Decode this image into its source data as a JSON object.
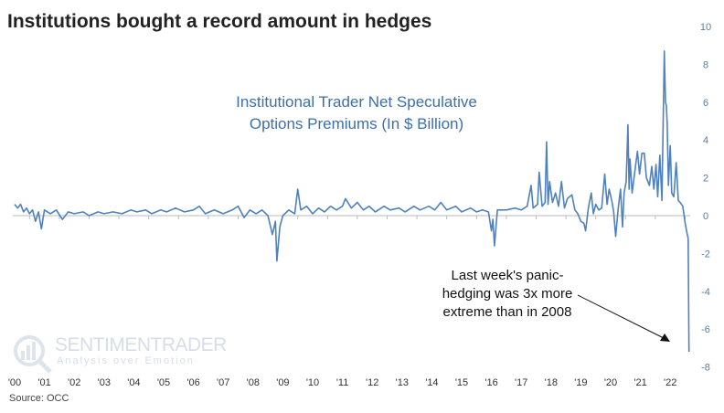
{
  "title": "Institutions bought a record amount in hedges",
  "source": "Source: OCC",
  "logo": {
    "brand": "SENTIMENTRADER",
    "tagline": "Analysis over Emotion"
  },
  "colors": {
    "series": "#4f81bd",
    "subtitle": "#3d6fa8",
    "axis": "#5a7aa6"
  },
  "chart_data": {
    "type": "line",
    "title": "Institutional Trader Net Speculative Options Premiums (In $ Billion)",
    "title_lines": [
      "Institutional Trader Net Speculative",
      "Options Premiums (In $ Billion)"
    ],
    "annotation": {
      "lines": [
        "Last week's panic-",
        "hedging was 3x more",
        "extreme than in 2008"
      ],
      "arrow": "points to latest value"
    },
    "x_tick_labels": [
      "'00",
      "'01",
      "'02",
      "'03",
      "'04",
      "'05",
      "'06",
      "'07",
      "'08",
      "'09",
      "'10",
      "'11",
      "'12",
      "'13",
      "'14",
      "'15",
      "'16",
      "'17",
      "'18",
      "'19",
      "'20",
      "'21",
      "'22"
    ],
    "y_tick_labels": [
      "10",
      "8",
      "6",
      "4",
      "2",
      "0",
      "-2",
      "-4",
      "-6",
      "-8"
    ],
    "ylim": [
      -8,
      10
    ],
    "xlim": [
      2000,
      2022.7
    ],
    "y_axis_position": "right",
    "grid": false,
    "series": [
      {
        "points": [
          [
            2000.0,
            0.6
          ],
          [
            2000.1,
            0.4
          ],
          [
            2000.2,
            0.6
          ],
          [
            2000.3,
            0.2
          ],
          [
            2000.4,
            0.4
          ],
          [
            2000.5,
            0.1
          ],
          [
            2000.6,
            0.3
          ],
          [
            2000.7,
            -0.3
          ],
          [
            2000.8,
            0.2
          ],
          [
            2000.9,
            -0.7
          ],
          [
            2001.0,
            0.3
          ],
          [
            2001.2,
            0.1
          ],
          [
            2001.4,
            0.3
          ],
          [
            2001.6,
            -0.2
          ],
          [
            2001.8,
            0.2
          ],
          [
            2002.0,
            0.1
          ],
          [
            2002.3,
            0.2
          ],
          [
            2002.5,
            0.0
          ],
          [
            2002.8,
            0.2
          ],
          [
            2003.0,
            0.1
          ],
          [
            2003.3,
            0.2
          ],
          [
            2003.6,
            0.1
          ],
          [
            2003.9,
            0.3
          ],
          [
            2004.1,
            0.2
          ],
          [
            2004.4,
            0.3
          ],
          [
            2004.6,
            0.1
          ],
          [
            2004.9,
            0.3
          ],
          [
            2005.1,
            0.2
          ],
          [
            2005.4,
            0.4
          ],
          [
            2005.7,
            0.2
          ],
          [
            2006.0,
            0.3
          ],
          [
            2006.2,
            0.5
          ],
          [
            2006.4,
            0.1
          ],
          [
            2006.7,
            0.3
          ],
          [
            2007.0,
            0.1
          ],
          [
            2007.3,
            0.3
          ],
          [
            2007.5,
            0.5
          ],
          [
            2007.7,
            -0.1
          ],
          [
            2007.9,
            0.3
          ],
          [
            2008.1,
            0.1
          ],
          [
            2008.3,
            0.3
          ],
          [
            2008.5,
            0.0
          ],
          [
            2008.65,
            -1.0
          ],
          [
            2008.75,
            -0.3
          ],
          [
            2008.8,
            -2.4
          ],
          [
            2008.9,
            -0.6
          ],
          [
            2009.0,
            0.0
          ],
          [
            2009.2,
            0.3
          ],
          [
            2009.4,
            0.1
          ],
          [
            2009.5,
            1.4
          ],
          [
            2009.6,
            0.3
          ],
          [
            2009.8,
            0.5
          ],
          [
            2010.0,
            0.1
          ],
          [
            2010.2,
            0.4
          ],
          [
            2010.4,
            0.2
          ],
          [
            2010.6,
            0.5
          ],
          [
            2010.8,
            0.3
          ],
          [
            2011.0,
            0.5
          ],
          [
            2011.1,
            0.9
          ],
          [
            2011.3,
            0.4
          ],
          [
            2011.5,
            0.7
          ],
          [
            2011.7,
            0.3
          ],
          [
            2011.9,
            0.5
          ],
          [
            2012.1,
            0.2
          ],
          [
            2012.4,
            0.5
          ],
          [
            2012.6,
            0.3
          ],
          [
            2012.9,
            0.4
          ],
          [
            2013.1,
            0.2
          ],
          [
            2013.4,
            0.5
          ],
          [
            2013.6,
            0.3
          ],
          [
            2013.9,
            0.5
          ],
          [
            2014.1,
            0.3
          ],
          [
            2014.3,
            0.7
          ],
          [
            2014.5,
            0.3
          ],
          [
            2014.8,
            0.5
          ],
          [
            2015.0,
            0.2
          ],
          [
            2015.3,
            0.4
          ],
          [
            2015.5,
            0.2
          ],
          [
            2015.7,
            0.3
          ],
          [
            2015.9,
            0.2
          ],
          [
            2016.0,
            -0.8
          ],
          [
            2016.05,
            -0.2
          ],
          [
            2016.1,
            -1.6
          ],
          [
            2016.2,
            0.3
          ],
          [
            2016.5,
            0.3
          ],
          [
            2016.8,
            0.4
          ],
          [
            2017.0,
            0.3
          ],
          [
            2017.2,
            0.5
          ],
          [
            2017.33,
            1.6
          ],
          [
            2017.4,
            0.4
          ],
          [
            2017.55,
            0.6
          ],
          [
            2017.6,
            2.3
          ],
          [
            2017.7,
            0.5
          ],
          [
            2017.8,
            0.7
          ],
          [
            2017.85,
            3.9
          ],
          [
            2017.9,
            0.6
          ],
          [
            2017.95,
            1.8
          ],
          [
            2018.05,
            0.7
          ],
          [
            2018.15,
            1.2
          ],
          [
            2018.25,
            0.5
          ],
          [
            2018.35,
            1.8
          ],
          [
            2018.45,
            0.4
          ],
          [
            2018.55,
            0.9
          ],
          [
            2018.7,
            1.1
          ],
          [
            2018.8,
            0.3
          ],
          [
            2018.9,
            0.1
          ],
          [
            2019.0,
            -0.3
          ],
          [
            2019.1,
            -0.4
          ],
          [
            2019.16,
            -0.8
          ],
          [
            2019.25,
            0.4
          ],
          [
            2019.35,
            1.2
          ],
          [
            2019.42,
            0.1
          ],
          [
            2019.5,
            0.6
          ],
          [
            2019.6,
            0.3
          ],
          [
            2019.7,
            0.4
          ],
          [
            2019.8,
            2.2
          ],
          [
            2019.88,
            0.6
          ],
          [
            2019.95,
            1.4
          ],
          [
            2020.05,
            0.7
          ],
          [
            2020.1,
            0.2
          ],
          [
            2020.17,
            -1.1
          ],
          [
            2020.25,
            0.3
          ],
          [
            2020.33,
            1.4
          ],
          [
            2020.4,
            -0.6
          ],
          [
            2020.45,
            1.2
          ],
          [
            2020.52,
            1.8
          ],
          [
            2020.58,
            4.8
          ],
          [
            2020.62,
            1.4
          ],
          [
            2020.65,
            3.0
          ],
          [
            2020.72,
            1.2
          ],
          [
            2020.8,
            2.2
          ],
          [
            2020.9,
            3.4
          ],
          [
            2020.97,
            2.2
          ],
          [
            2021.05,
            3.3
          ],
          [
            2021.13,
            3.3
          ],
          [
            2021.2,
            2.0
          ],
          [
            2021.3,
            1.6
          ],
          [
            2021.38,
            2.6
          ],
          [
            2021.45,
            1.4
          ],
          [
            2021.52,
            2.7
          ],
          [
            2021.58,
            1.0
          ],
          [
            2021.65,
            3.2
          ],
          [
            2021.72,
            0.8
          ],
          [
            2021.8,
            8.7
          ],
          [
            2021.84,
            6.0
          ],
          [
            2021.87,
            5.8
          ],
          [
            2021.9,
            4.8
          ],
          [
            2021.94,
            1.6
          ],
          [
            2022.0,
            3.7
          ],
          [
            2022.05,
            1.2
          ],
          [
            2022.12,
            1.0
          ],
          [
            2022.2,
            2.8
          ],
          [
            2022.27,
            0.8
          ],
          [
            2022.33,
            0.7
          ],
          [
            2022.42,
            0.5
          ],
          [
            2022.5,
            -0.4
          ],
          [
            2022.57,
            -1.0
          ],
          [
            2022.6,
            -1.2
          ],
          [
            2022.63,
            -7.2
          ]
        ]
      }
    ]
  }
}
